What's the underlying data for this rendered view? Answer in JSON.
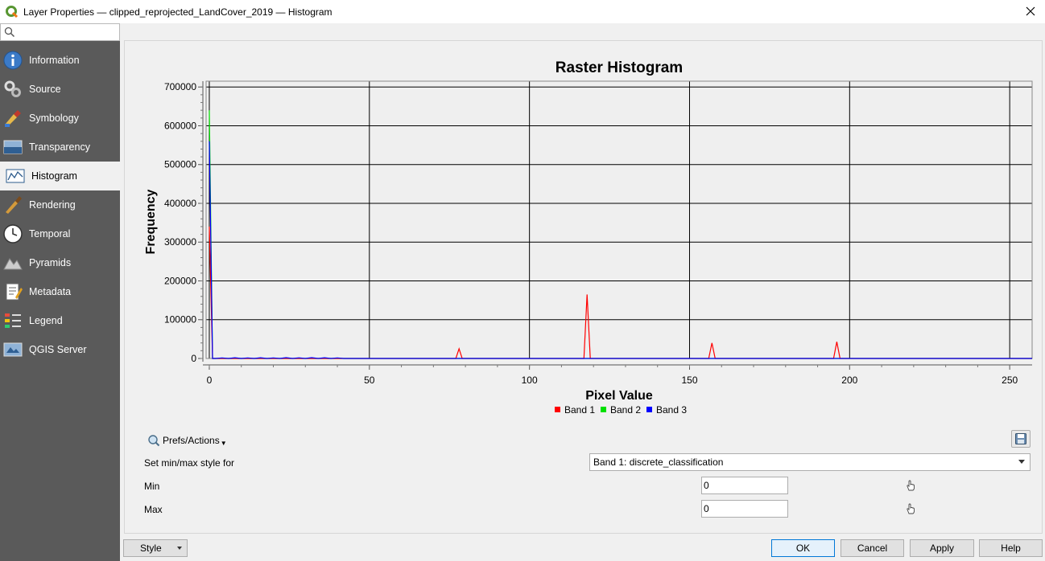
{
  "window": {
    "title": "Layer Properties — clipped_reprojected_LandCover_2019 — Histogram"
  },
  "sidebar": {
    "search_placeholder": "",
    "items": [
      {
        "label": "Information",
        "icon": "information-icon",
        "active": false
      },
      {
        "label": "Source",
        "icon": "source-icon",
        "active": false
      },
      {
        "label": "Symbology",
        "icon": "symbology-icon",
        "active": false
      },
      {
        "label": "Transparency",
        "icon": "transparency-icon",
        "active": false
      },
      {
        "label": "Histogram",
        "icon": "histogram-icon",
        "active": true
      },
      {
        "label": "Rendering",
        "icon": "rendering-icon",
        "active": false
      },
      {
        "label": "Temporal",
        "icon": "temporal-icon",
        "active": false
      },
      {
        "label": "Pyramids",
        "icon": "pyramids-icon",
        "active": false
      },
      {
        "label": "Metadata",
        "icon": "metadata-icon",
        "active": false
      },
      {
        "label": "Legend",
        "icon": "legend-icon",
        "active": false
      },
      {
        "label": "QGIS Server",
        "icon": "qgis-server-icon",
        "active": false
      }
    ]
  },
  "chart_data": {
    "type": "line",
    "title": "Raster Histogram",
    "xlabel": "Pixel Value",
    "ylabel": "Frequency",
    "xlim": [
      -1,
      257
    ],
    "ylim": [
      0,
      715000
    ],
    "xticks": [
      0,
      50,
      100,
      150,
      200,
      250
    ],
    "yticks": [
      0,
      100000,
      200000,
      300000,
      400000,
      500000,
      600000,
      700000
    ],
    "ytick_labels": [
      "0",
      "100000",
      "200000",
      "300000",
      "400000",
      "500000",
      "600000",
      "700000"
    ],
    "grid": true,
    "legend_position": "bottom",
    "series": [
      {
        "name": "Band 1",
        "color": "#ff0000",
        "points": [
          [
            0,
            340000
          ],
          [
            1,
            0
          ],
          [
            77,
            0
          ],
          [
            78,
            25000
          ],
          [
            79,
            0
          ],
          [
            117,
            0
          ],
          [
            118,
            165000
          ],
          [
            119,
            0
          ],
          [
            156,
            0
          ],
          [
            157,
            40000
          ],
          [
            158,
            0
          ],
          [
            195,
            0
          ],
          [
            196,
            43000
          ],
          [
            197,
            0
          ],
          [
            257,
            0
          ]
        ]
      },
      {
        "name": "Band 2",
        "color": "#00e000",
        "points": [
          [
            0,
            640000
          ],
          [
            1,
            0
          ],
          [
            257,
            0
          ]
        ]
      },
      {
        "name": "Band 3",
        "color": "#0000ff",
        "points": [
          [
            0,
            560000
          ],
          [
            1,
            0
          ],
          [
            2,
            0
          ],
          [
            4,
            1500
          ],
          [
            6,
            0
          ],
          [
            8,
            1800
          ],
          [
            10,
            0
          ],
          [
            12,
            1500
          ],
          [
            14,
            0
          ],
          [
            16,
            1800
          ],
          [
            18,
            0
          ],
          [
            20,
            1500
          ],
          [
            22,
            0
          ],
          [
            24,
            2000
          ],
          [
            26,
            0
          ],
          [
            28,
            1600
          ],
          [
            30,
            0
          ],
          [
            32,
            2000
          ],
          [
            34,
            0
          ],
          [
            36,
            1800
          ],
          [
            38,
            0
          ],
          [
            40,
            1500
          ],
          [
            42,
            0
          ],
          [
            257,
            0
          ]
        ]
      }
    ]
  },
  "controls": {
    "prefs_label": "Prefs/Actions",
    "minmax_label": "Set min/max style for",
    "band_select_value": "Band 1: discrete_classification",
    "min_label": "Min",
    "min_value": "0",
    "max_label": "Max",
    "max_value": "0"
  },
  "buttons": {
    "style": "Style",
    "ok": "OK",
    "cancel": "Cancel",
    "apply": "Apply",
    "help": "Help"
  }
}
